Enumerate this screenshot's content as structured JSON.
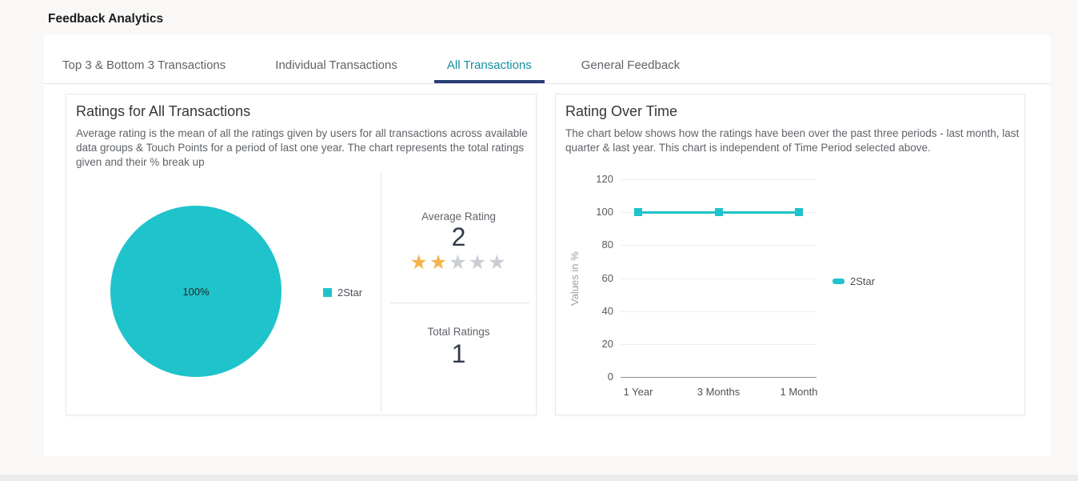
{
  "header": {
    "title": "Feedback Analytics"
  },
  "tabs": [
    {
      "label": "Top 3 & Bottom 3 Transactions",
      "active": false
    },
    {
      "label": "Individual Transactions",
      "active": false
    },
    {
      "label": "All Transactions",
      "active": true
    },
    {
      "label": "General Feedback",
      "active": false
    }
  ],
  "colors": {
    "accent_teal": "#1fc3cb",
    "active_tab_text": "#12919f",
    "active_tab_underline": "#293e78",
    "star_filled": "#f6b44c",
    "star_empty": "#c9cdd4"
  },
  "cards": {
    "ratings": {
      "title": "Ratings for All Transactions",
      "description": "Average rating is the mean of all the ratings given by users for all transactions across available data groups & Touch Points for a period of last one year. The chart represents the total ratings given and their % break up",
      "average_rating": {
        "label": "Average Rating",
        "value": "2",
        "stars_filled": 2,
        "stars_total": 5
      },
      "total_ratings": {
        "label": "Total Ratings",
        "value": "1"
      }
    },
    "rating_over_time": {
      "title": "Rating Over Time",
      "description": "The chart below shows how the ratings have been over the past three periods - last month, last quarter & last year. This chart is independent of Time Period selected above."
    }
  },
  "chart_data": [
    {
      "type": "pie",
      "title": "Ratings for All Transactions",
      "slices": [
        {
          "label": "2Star",
          "value": 100,
          "display": "100%",
          "color": "#1fc3cb"
        }
      ],
      "legend_position": "right"
    },
    {
      "type": "line",
      "title": "Rating Over Time",
      "categories": [
        "1 Year",
        "3 Months",
        "1 Month"
      ],
      "series": [
        {
          "name": "2Star",
          "values": [
            100,
            100,
            100
          ],
          "color": "#1fc3cb"
        }
      ],
      "ylabel": "Values in %",
      "ylim": [
        0,
        120
      ],
      "ytick_step": 20,
      "grid": true,
      "legend_position": "right"
    }
  ]
}
